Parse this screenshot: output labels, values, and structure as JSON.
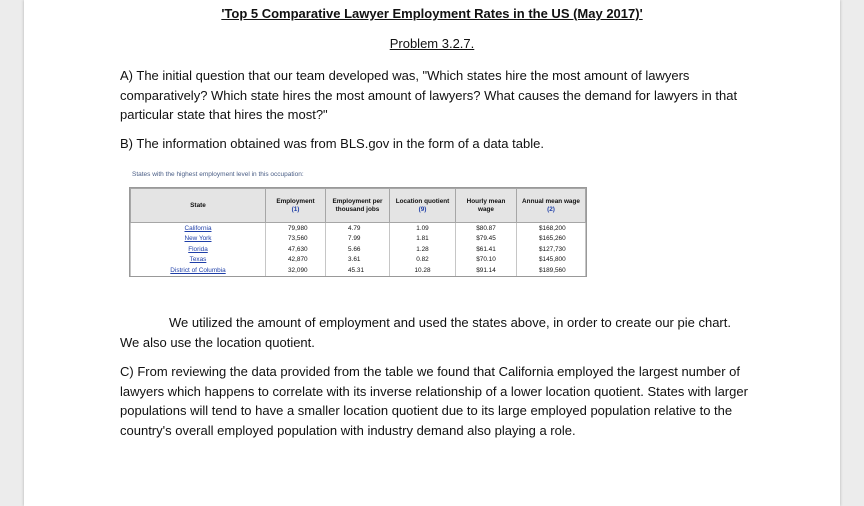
{
  "document": {
    "title": "'Top 5 Comparative Lawyer Employment Rates in the US (May 2017)'",
    "subtitle": "Problem 3.2.7.",
    "para_a": "A) The initial question that our team developed was, \"Which states hire the most amount of lawyers comparatively? Which state hires the most amount of lawyers? What causes the demand for lawyers in that particular state that hires the most?\"",
    "para_b": "B) The information obtained was from BLS.gov in the form of a data table.",
    "para_used": "We utilized the amount of employment and used the states above, in order to create our pie chart. We also use the location quotient.",
    "para_c": "C) From reviewing the data provided from the table we found that California employed the largest number of lawyers which happens to correlate with its inverse relationship of a lower location quotient. States with larger populations will tend to have a smaller location quotient due to its large employed population relative to the country's overall employed population with industry demand also playing a role."
  },
  "table": {
    "caption": "States with the highest employment level in this occupation:",
    "headers": {
      "state": "State",
      "employment": "Employment",
      "employment_fn": "(1)",
      "per_thousand": "Employment per thousand jobs",
      "lq": "Location quotient",
      "lq_fn": "(9)",
      "hourly": "Hourly mean wage",
      "annual": "Annual mean wage",
      "annual_fn": "(2)"
    },
    "rows": [
      {
        "state": "California",
        "employment": "79,980",
        "per_thousand": "4.79",
        "lq": "1.09",
        "hourly": "$80.87",
        "annual": "$168,200"
      },
      {
        "state": "New York",
        "employment": "73,560",
        "per_thousand": "7.99",
        "lq": "1.81",
        "hourly": "$79.45",
        "annual": "$165,260"
      },
      {
        "state": "Florida",
        "employment": "47,630",
        "per_thousand": "5.66",
        "lq": "1.28",
        "hourly": "$61.41",
        "annual": "$127,730"
      },
      {
        "state": "Texas",
        "employment": "42,870",
        "per_thousand": "3.61",
        "lq": "0.82",
        "hourly": "$70.10",
        "annual": "$145,800"
      },
      {
        "state": "District of Columbia",
        "employment": "32,090",
        "per_thousand": "45.31",
        "lq": "10.28",
        "hourly": "$91.14",
        "annual": "$189,560"
      }
    ]
  }
}
